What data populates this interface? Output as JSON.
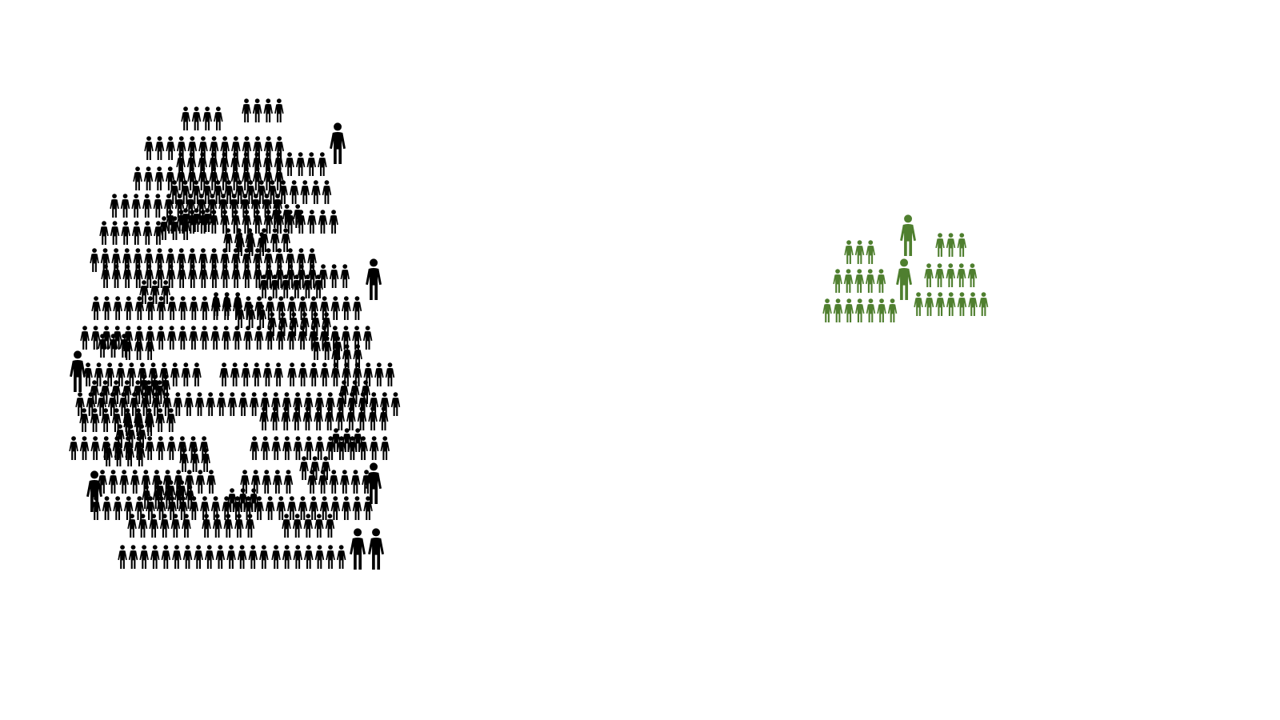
{
  "icon": "person-icon",
  "colors": {
    "background": "#ffffff",
    "large_group": "#000000",
    "small_group": "#4f7f2f"
  },
  "groups": [
    {
      "name": "black-crowd",
      "color": "#000000"
    },
    {
      "name": "green-crowd",
      "color": "#4f7f2f"
    }
  ]
}
